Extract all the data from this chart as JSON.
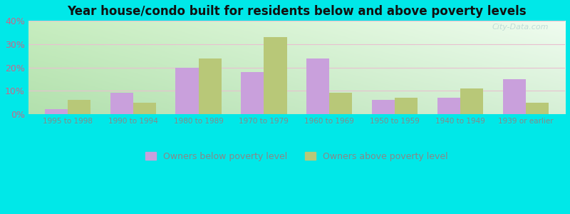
{
  "title": "Year house/condo built for residents below and above poverty levels",
  "categories": [
    "1995 to 1998",
    "1990 to 1994",
    "1980 to 1989",
    "1970 to 1979",
    "1960 to 1969",
    "1950 to 1959",
    "1940 to 1949",
    "1939 or earlier"
  ],
  "below_poverty": [
    2,
    9,
    20,
    18,
    24,
    6,
    7,
    15
  ],
  "above_poverty": [
    6,
    5,
    24,
    33,
    9,
    7,
    11,
    5
  ],
  "below_color": "#c9a0dc",
  "above_color": "#b8c878",
  "outer_bg": "#00e8e8",
  "ylim": [
    0,
    40
  ],
  "yticks": [
    0,
    10,
    20,
    30,
    40
  ],
  "legend_below": "Owners below poverty level",
  "legend_above": "Owners above poverty level",
  "bar_width": 0.35,
  "grid_color": "#e8c0d0",
  "tick_color_y": "#cc6688",
  "tick_color_x": "#888888"
}
